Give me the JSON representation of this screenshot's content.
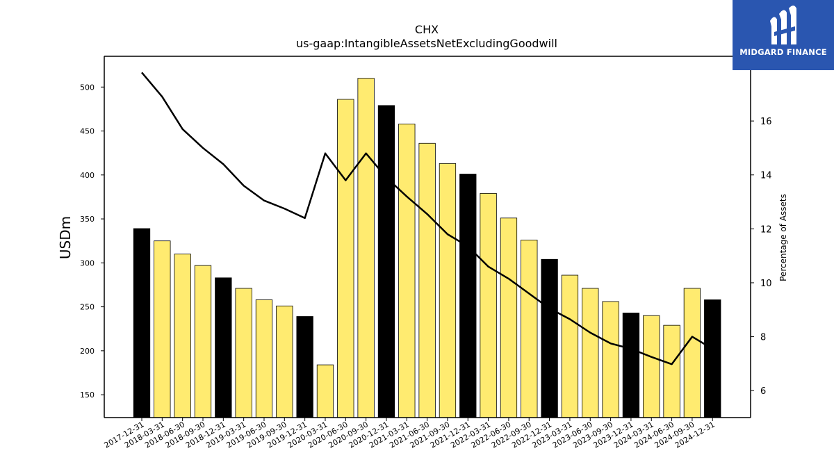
{
  "chart_data": {
    "type": "bar",
    "title": "CHX",
    "subtitle": "us-gaap:IntangibleAssetsNetExcludingGoodwill",
    "ylabel": "USDm",
    "y2label": "Percentage of Assets",
    "ylim": [
      124,
      535
    ],
    "y2lim": [
      5.0,
      18.4
    ],
    "yticks": [
      150,
      200,
      250,
      300,
      350,
      400,
      450,
      500
    ],
    "y2ticks": [
      6,
      8,
      10,
      12,
      14,
      16
    ],
    "categories": [
      "2017-12-31",
      "2018-03-31",
      "2018-06-30",
      "2018-09-30",
      "2018-12-31",
      "2019-03-31",
      "2019-06-30",
      "2019-09-30",
      "2019-12-31",
      "2020-03-31",
      "2020-06-30",
      "2020-09-30",
      "2020-12-31",
      "2021-03-31",
      "2021-06-30",
      "2021-09-30",
      "2021-12-31",
      "2022-03-31",
      "2022-06-30",
      "2022-09-30",
      "2022-12-31",
      "2023-03-31",
      "2023-06-30",
      "2023-09-30",
      "2023-12-31",
      "2024-03-31",
      "2024-06-30",
      "2024-09-30",
      "2024-12-31"
    ],
    "series": [
      {
        "values": [
          339,
          325,
          310,
          297,
          283,
          271,
          258,
          251,
          239,
          184,
          486,
          510,
          479,
          458,
          436,
          413,
          401,
          379,
          351,
          326,
          304,
          286,
          271,
          256,
          243,
          240,
          229,
          271,
          258
        ],
        "colors": [
          "#000000",
          "#ffeb70",
          "#ffeb70",
          "#ffeb70",
          "#000000",
          "#ffeb70",
          "#ffeb70",
          "#ffeb70",
          "#000000",
          "#ffeb70",
          "#ffeb70",
          "#ffeb70",
          "#000000",
          "#ffeb70",
          "#ffeb70",
          "#ffeb70",
          "#000000",
          "#ffeb70",
          "#ffeb70",
          "#ffeb70",
          "#000000",
          "#ffeb70",
          "#ffeb70",
          "#ffeb70",
          "#000000",
          "#ffeb70",
          "#ffeb70",
          "#ffeb70",
          "#000000"
        ]
      },
      {
        "type": "line",
        "axis": "right",
        "values": [
          17.8,
          16.9,
          15.7,
          15.0,
          14.4,
          13.6,
          13.05,
          12.75,
          12.4,
          14.8,
          13.8,
          14.8,
          13.9,
          13.2,
          12.55,
          11.8,
          11.35,
          10.6,
          10.15,
          9.6,
          9.05,
          8.65,
          8.15,
          7.75,
          7.55,
          7.25,
          6.98,
          8.0,
          7.55
        ]
      }
    ]
  },
  "logo": {
    "text": "MIDGARD FINANCE",
    "background": "#2a56b0"
  }
}
